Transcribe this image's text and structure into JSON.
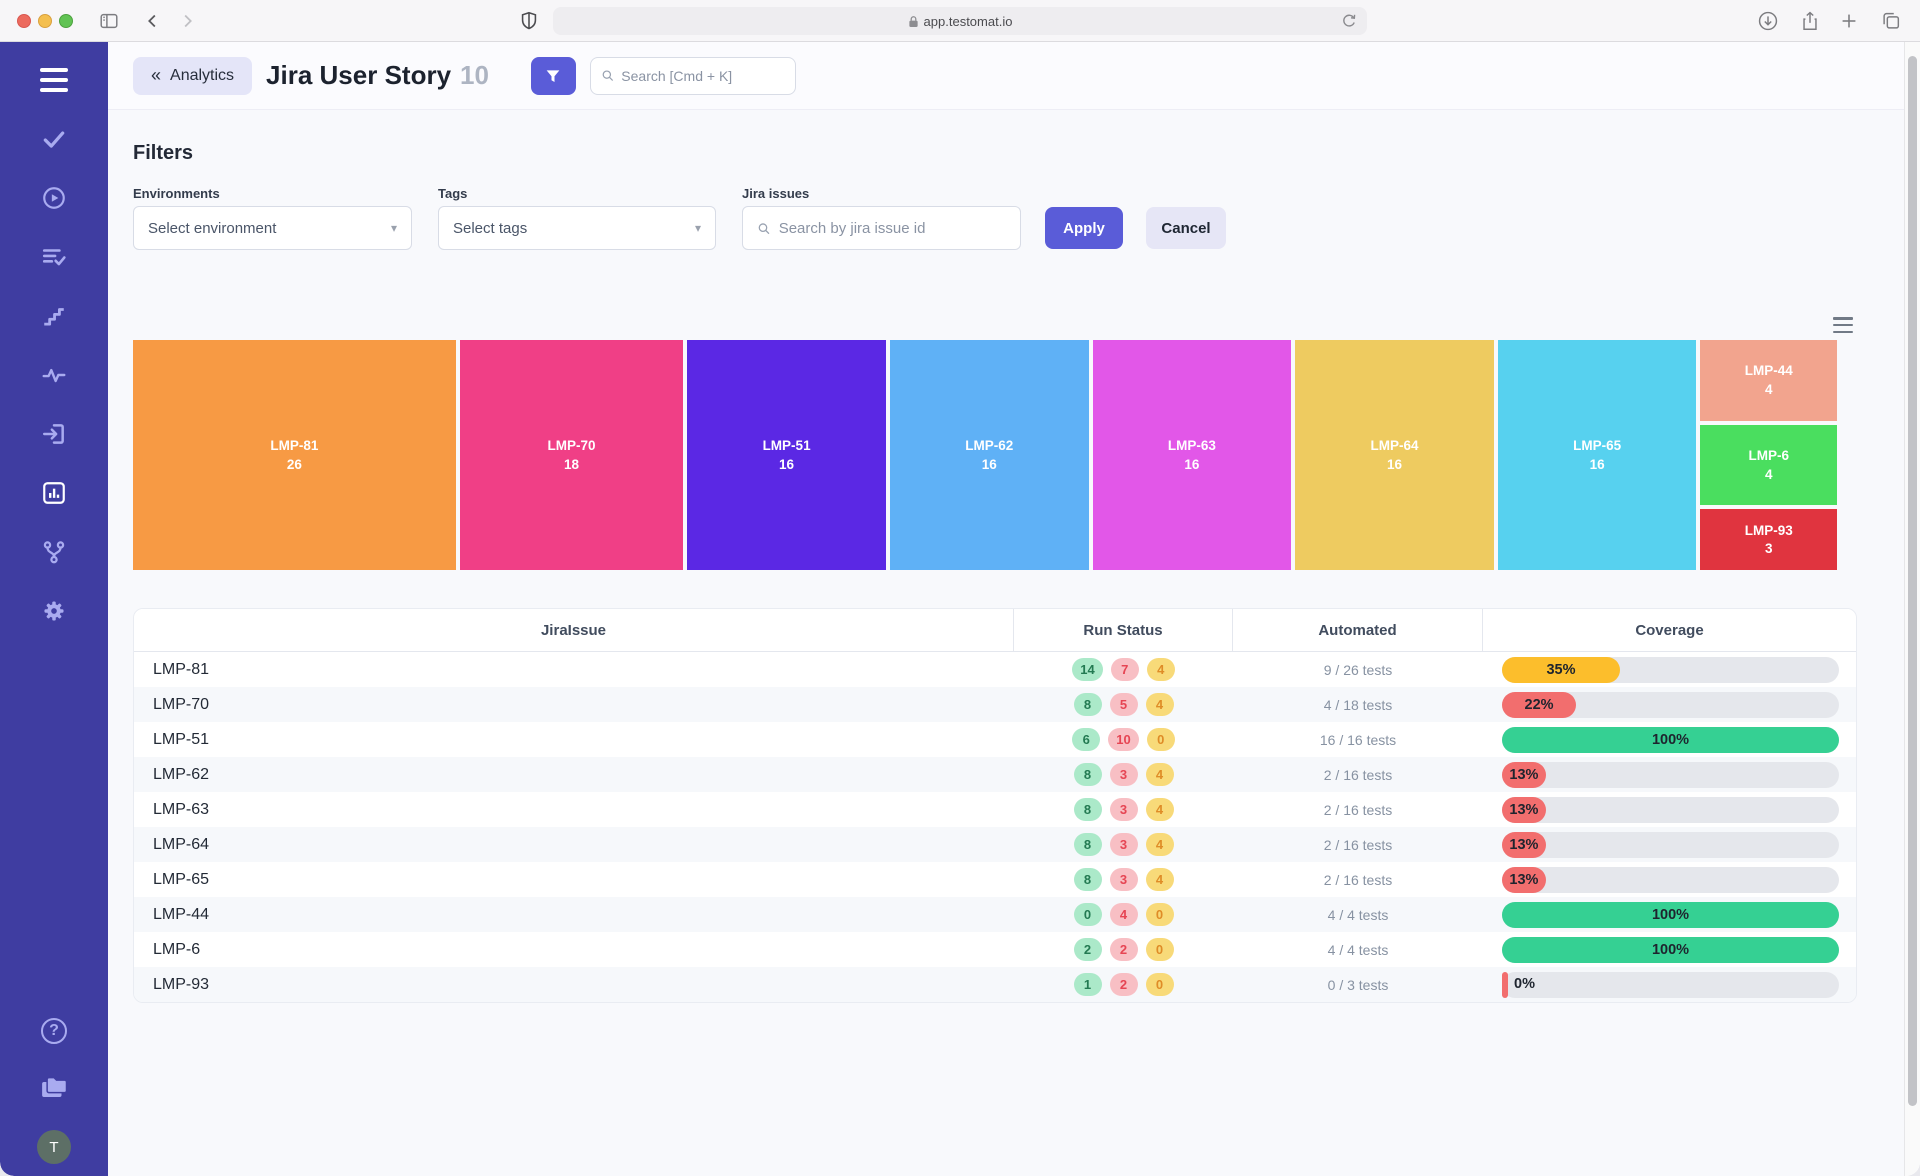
{
  "browser": {
    "url": "app.testomat.io"
  },
  "header": {
    "back_chevrons": "«",
    "back_label": "Analytics",
    "title": "Jira User Story",
    "count": "10",
    "search_placeholder": "Search [Cmd + K]"
  },
  "filters": {
    "title": "Filters",
    "environments_label": "Environments",
    "environments_value": "Select environment",
    "tags_label": "Tags",
    "tags_value": "Select tags",
    "jira_label": "Jira issues",
    "jira_placeholder": "Search by jira issue id",
    "apply_label": "Apply",
    "cancel_label": "Cancel",
    "caret": "▾"
  },
  "chart_data": {
    "type": "treemap",
    "items": [
      {
        "label": "LMP-81",
        "value": 26,
        "color": "#f79a44"
      },
      {
        "label": "LMP-70",
        "value": 18,
        "color": "#f03f86"
      },
      {
        "label": "LMP-51",
        "value": 16,
        "color": "#5b28e4"
      },
      {
        "label": "LMP-62",
        "value": 16,
        "color": "#5fb1f6"
      },
      {
        "label": "LMP-63",
        "value": 16,
        "color": "#e257e8"
      },
      {
        "label": "LMP-64",
        "value": 16,
        "color": "#eecb60"
      },
      {
        "label": "LMP-65",
        "value": 16,
        "color": "#57d1ef"
      },
      {
        "label": "LMP-44",
        "value": 4,
        "color": "#f2a48e"
      },
      {
        "label": "LMP-6",
        "value": 4,
        "color": "#4ade5f"
      },
      {
        "label": "LMP-93",
        "value": 3,
        "color": "#e0343f"
      }
    ],
    "layout": {
      "columns": [
        [
          0
        ],
        [
          1
        ],
        [
          2
        ],
        [
          3
        ],
        [
          4
        ],
        [
          5
        ],
        [
          6
        ],
        [
          7,
          8,
          9
        ]
      ]
    }
  },
  "table": {
    "columns": [
      "JiraIssue",
      "Run Status",
      "Automated",
      "Coverage"
    ],
    "rows": [
      {
        "issue": "LMP-81",
        "passed": 14,
        "failed": 7,
        "skipped": 4,
        "automated": "9 / 26 tests",
        "coverage": 35,
        "coverage_color": "yellow"
      },
      {
        "issue": "LMP-70",
        "passed": 8,
        "failed": 5,
        "skipped": 4,
        "automated": "4 / 18 tests",
        "coverage": 22,
        "coverage_color": "red"
      },
      {
        "issue": "LMP-51",
        "passed": 6,
        "failed": 10,
        "skipped": 0,
        "automated": "16 / 16 tests",
        "coverage": 100,
        "coverage_color": "green"
      },
      {
        "issue": "LMP-62",
        "passed": 8,
        "failed": 3,
        "skipped": 4,
        "automated": "2 / 16 tests",
        "coverage": 13,
        "coverage_color": "red"
      },
      {
        "issue": "LMP-63",
        "passed": 8,
        "failed": 3,
        "skipped": 4,
        "automated": "2 / 16 tests",
        "coverage": 13,
        "coverage_color": "red"
      },
      {
        "issue": "LMP-64",
        "passed": 8,
        "failed": 3,
        "skipped": 4,
        "automated": "2 / 16 tests",
        "coverage": 13,
        "coverage_color": "red"
      },
      {
        "issue": "LMP-65",
        "passed": 8,
        "failed": 3,
        "skipped": 4,
        "automated": "2 / 16 tests",
        "coverage": 13,
        "coverage_color": "red"
      },
      {
        "issue": "LMP-44",
        "passed": 0,
        "failed": 4,
        "skipped": 0,
        "automated": "4 / 4 tests",
        "coverage": 100,
        "coverage_color": "green"
      },
      {
        "issue": "LMP-6",
        "passed": 2,
        "failed": 2,
        "skipped": 0,
        "automated": "4 / 4 tests",
        "coverage": 100,
        "coverage_color": "green"
      },
      {
        "issue": "LMP-93",
        "passed": 1,
        "failed": 2,
        "skipped": 0,
        "automated": "0 / 3 tests",
        "coverage": 0,
        "coverage_color": "red"
      }
    ]
  },
  "sidebar": {
    "avatar_initial": "T",
    "help_glyph": "?"
  },
  "colors": {
    "accent": "#5a5cd8",
    "sidebar": "#3f3da1",
    "coverage": {
      "green": "#35d093",
      "yellow": "#fcbe2c",
      "red": "#f26e6e",
      "track": "#e5e7ec"
    },
    "badge": {
      "pass": "#abe9c9",
      "fail": "#f8bfc4",
      "skip": "#f8da79"
    }
  }
}
